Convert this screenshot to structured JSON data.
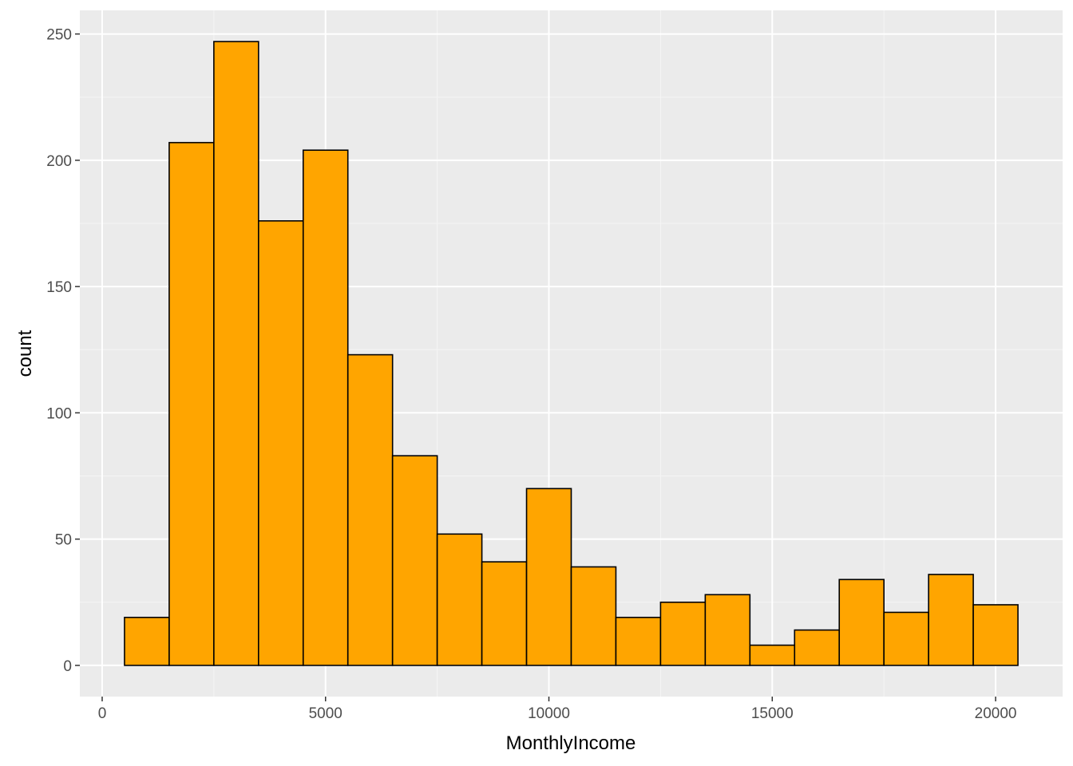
{
  "chart_data": {
    "type": "histogram",
    "title": "",
    "xlabel": "MonthlyIncome",
    "ylabel": "count",
    "binwidth": 1000,
    "bins": [
      {
        "x_start": 500,
        "x_end": 1500,
        "count": 19
      },
      {
        "x_start": 1500,
        "x_end": 2500,
        "count": 207
      },
      {
        "x_start": 2500,
        "x_end": 3500,
        "count": 247
      },
      {
        "x_start": 3500,
        "x_end": 4500,
        "count": 176
      },
      {
        "x_start": 4500,
        "x_end": 5500,
        "count": 204
      },
      {
        "x_start": 5500,
        "x_end": 6500,
        "count": 123
      },
      {
        "x_start": 6500,
        "x_end": 7500,
        "count": 83
      },
      {
        "x_start": 7500,
        "x_end": 8500,
        "count": 52
      },
      {
        "x_start": 8500,
        "x_end": 9500,
        "count": 41
      },
      {
        "x_start": 9500,
        "x_end": 10500,
        "count": 70
      },
      {
        "x_start": 10500,
        "x_end": 11500,
        "count": 39
      },
      {
        "x_start": 11500,
        "x_end": 12500,
        "count": 19
      },
      {
        "x_start": 12500,
        "x_end": 13500,
        "count": 25
      },
      {
        "x_start": 13500,
        "x_end": 14500,
        "count": 28
      },
      {
        "x_start": 14500,
        "x_end": 15500,
        "count": 8
      },
      {
        "x_start": 15500,
        "x_end": 16500,
        "count": 14
      },
      {
        "x_start": 16500,
        "x_end": 17500,
        "count": 34
      },
      {
        "x_start": 17500,
        "x_end": 18500,
        "count": 21
      },
      {
        "x_start": 18500,
        "x_end": 19500,
        "count": 36
      },
      {
        "x_start": 19500,
        "x_end": 20500,
        "count": 24
      }
    ],
    "xlim": [
      -500,
      21500
    ],
    "ylim": [
      -12.35,
      259.35
    ],
    "x_ticks": [
      0,
      5000,
      10000,
      15000,
      20000
    ],
    "x_tick_labels": [
      "0",
      "5000",
      "10000",
      "15000",
      "20000"
    ],
    "y_ticks": [
      0,
      50,
      100,
      150,
      200,
      250
    ],
    "y_tick_labels": [
      "0",
      "50",
      "100",
      "150",
      "200",
      "250"
    ],
    "grid": true,
    "legend": "none",
    "colors": {
      "bar_fill": "#FFA500",
      "bar_outline": "#000000",
      "panel_background": "#EBEBEB",
      "grid_major": "#FFFFFF",
      "grid_minor": "#F5F5F5",
      "tick_label": "#4D4D4D",
      "axis_title": "#000000"
    }
  }
}
